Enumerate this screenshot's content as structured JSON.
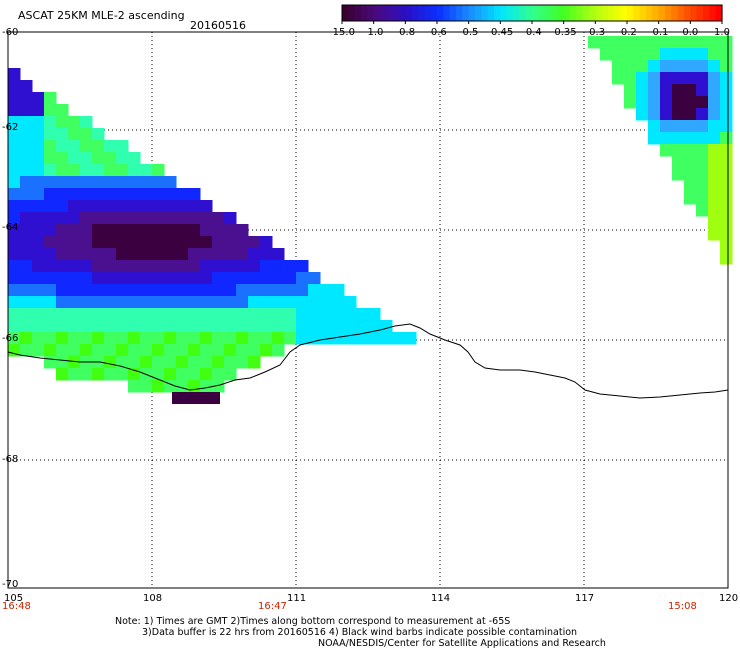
{
  "header": {
    "title": "ASCAT 25KM MLE-2 ascending",
    "date": "20160516"
  },
  "colorbar": {
    "labels": [
      "-15.0",
      "-1.0",
      "-0.8",
      "-0.6",
      "-0.5",
      "-0.45",
      "-0.4",
      "-0.35",
      "-0.3",
      "-0.2",
      "-0.1",
      "0.0",
      "1.0"
    ],
    "colors": [
      "#3a0030",
      "#4a0a80",
      "#2a10c8",
      "#0a30ff",
      "#1a8cff",
      "#00e6ff",
      "#30ff90",
      "#40ff20",
      "#b0ff10",
      "#ffff00",
      "#ffb000",
      "#ff5000",
      "#ff0000"
    ]
  },
  "axes": {
    "x_ticks": [
      "105",
      "108",
      "111",
      "114",
      "117",
      "120"
    ],
    "y_ticks": [
      "-60",
      "-62",
      "-64",
      "-66",
      "-68",
      "-70"
    ]
  },
  "times": {
    "t1": "16:48",
    "t2": "16:47",
    "t3": "15:08"
  },
  "notes": {
    "line1": "Note: 1) Times are GMT 2)Times along bottom correspond to measurement at -65S",
    "line2": "3)Data buffer is 22 hrs from 20160516 4) Black wind barbs indicate possible contamination",
    "line3": "NOAA/NESDIS/Center for Satellite Applications and Research"
  }
}
